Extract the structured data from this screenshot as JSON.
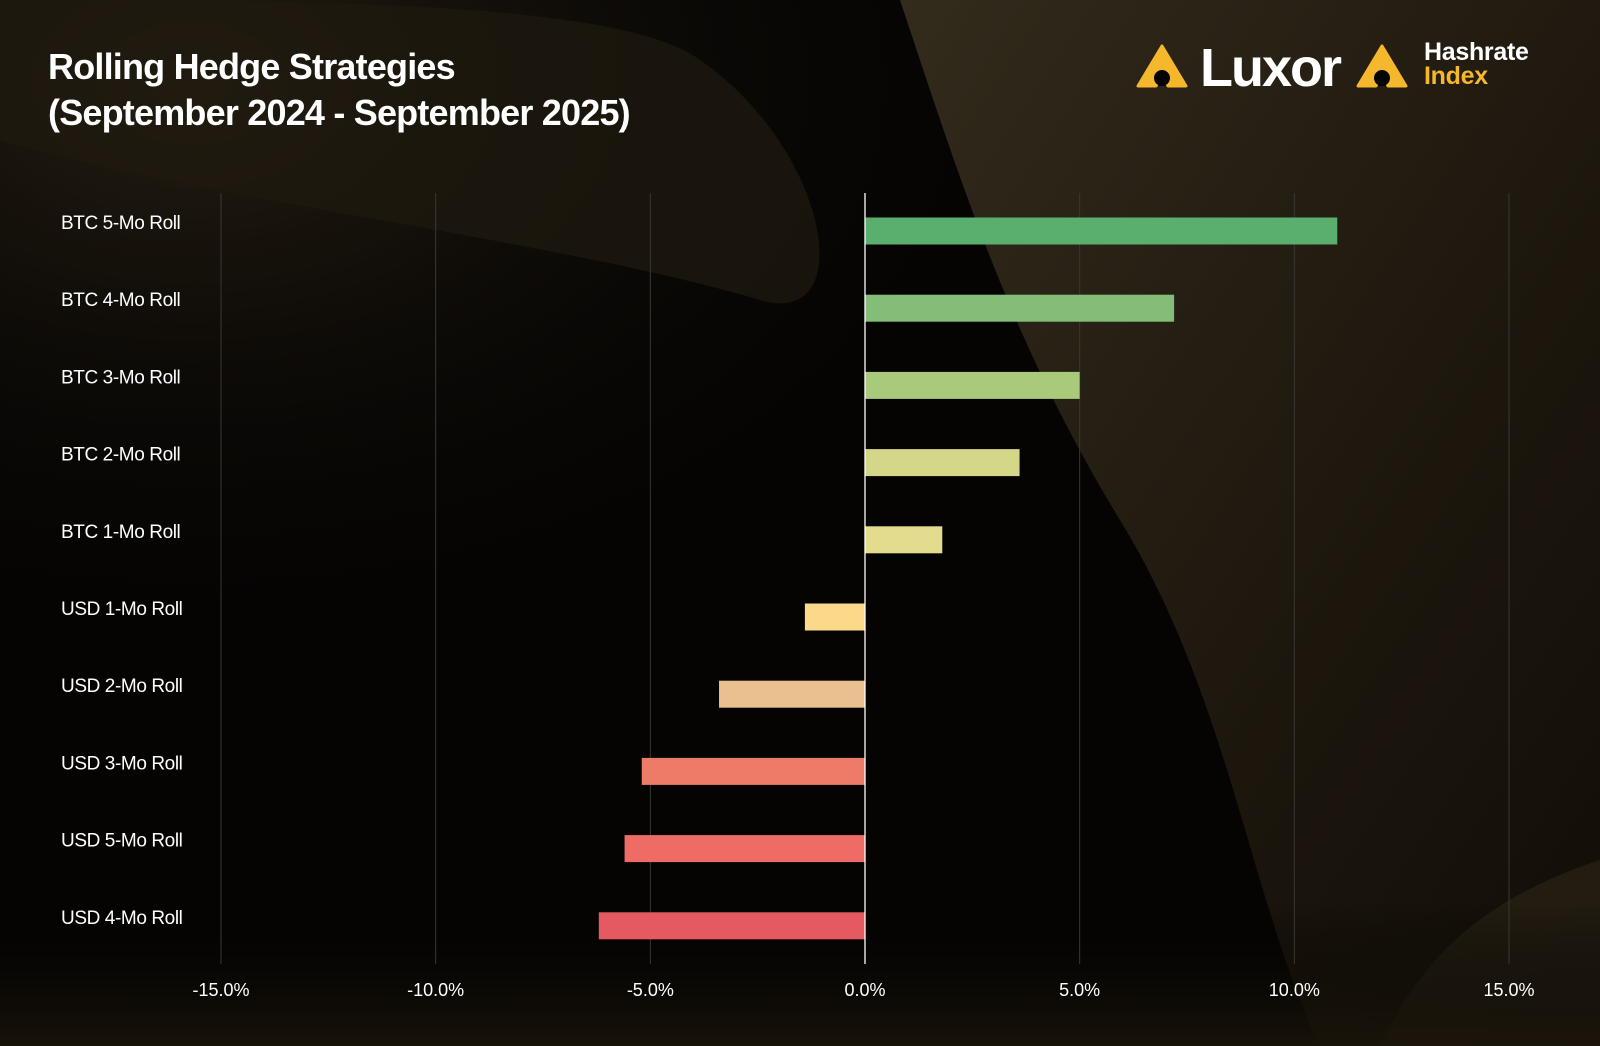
{
  "header": {
    "title_line1": "Rolling Hedge Strategies",
    "title_line2": "(September 2024  - September 2025)"
  },
  "logos": {
    "luxor": "Luxor",
    "hashrate_line1": "Hashrate",
    "hashrate_line2": "Index"
  },
  "colors": {
    "accent": "#f5b72b",
    "text": "#ffffff",
    "grid": "#3a3733",
    "zero_line": "#ffffff"
  },
  "chart_data": {
    "type": "bar",
    "orientation": "horizontal",
    "title": "Rolling Hedge Strategies (September 2024  - September 2025)",
    "xlabel": "",
    "ylabel": "",
    "xlim": [
      -15.0,
      15.0
    ],
    "x_ticks": [
      -15,
      -10,
      -5,
      0,
      5,
      10,
      15
    ],
    "tick_format": "percent_1dp",
    "grid": true,
    "legend": "none",
    "categories": [
      "BTC 5-Mo Roll",
      "BTC 4-Mo Roll",
      "BTC 3-Mo Roll",
      "BTC 2-Mo Roll",
      "BTC 1-Mo Roll",
      "USD 1-Mo Roll",
      "USD 2-Mo Roll",
      "USD 3-Mo Roll",
      "USD 5-Mo Roll",
      "USD 4-Mo Roll"
    ],
    "values": [
      11.0,
      7.2,
      5.0,
      3.6,
      1.8,
      -1.4,
      -3.4,
      -5.2,
      -5.6,
      -6.2
    ],
    "bar_colors": [
      "#5aae6e",
      "#84bd77",
      "#a9c97b",
      "#d4d688",
      "#e4dc8d",
      "#fcd88b",
      "#e9c08e",
      "#ec7b67",
      "#ef6c66",
      "#e55a60"
    ]
  }
}
